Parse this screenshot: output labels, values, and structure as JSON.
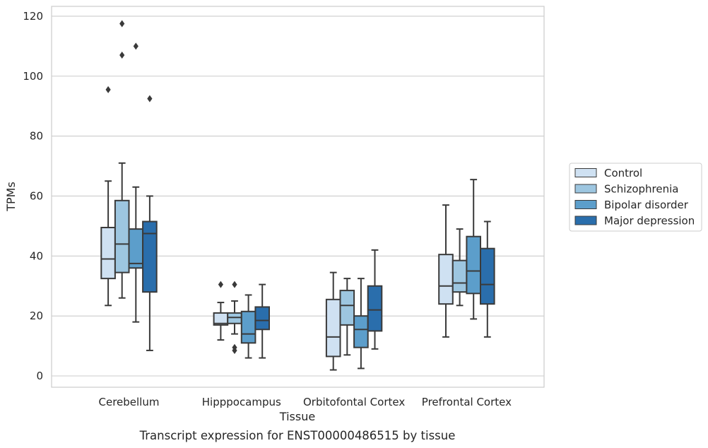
{
  "caption": "Transcript expression for ENST00000486515 by tissue",
  "chart_data": {
    "type": "box",
    "xlabel": "Tissue",
    "ylabel": "TPMs",
    "ylim": [
      -3.5,
      123.5
    ],
    "yticks": [
      0,
      20,
      40,
      60,
      80,
      100,
      120
    ],
    "grid": true,
    "legend_position": "right",
    "categories": [
      "Cerebellum",
      "Hipppocampus",
      "Orbitofontal Cortex",
      "Prefrontal Cortex"
    ],
    "series": [
      {
        "name": "Control",
        "color": "#cfe1f2",
        "boxes": [
          {
            "low": 23.5,
            "q1": 32.5,
            "median": 39,
            "q3": 49.5,
            "high": 65,
            "outliers": [
              95.5
            ]
          },
          {
            "low": 12,
            "q1": 17,
            "median": 17.5,
            "q3": 21,
            "high": 24.5,
            "outliers": [
              30.5
            ]
          },
          {
            "low": 2,
            "q1": 6.5,
            "median": 13,
            "q3": 25.5,
            "high": 34.5,
            "outliers": []
          },
          {
            "low": 13,
            "q1": 24,
            "median": 30,
            "q3": 40.5,
            "high": 57,
            "outliers": []
          }
        ]
      },
      {
        "name": "Schizophrenia",
        "color": "#9dc6e0",
        "boxes": [
          {
            "low": 26,
            "q1": 34.5,
            "median": 44,
            "q3": 58.5,
            "high": 71,
            "outliers": [
              107,
              117.5
            ]
          },
          {
            "low": 14,
            "q1": 17.5,
            "median": 19.5,
            "q3": 21,
            "high": 25,
            "outliers": [
              30.5,
              8.5,
              9.5
            ]
          },
          {
            "low": 7,
            "q1": 17,
            "median": 23.5,
            "q3": 28.5,
            "high": 32.5,
            "outliers": []
          },
          {
            "low": 23.5,
            "q1": 28,
            "median": 31,
            "q3": 38.5,
            "high": 49,
            "outliers": []
          }
        ]
      },
      {
        "name": "Bipolar disorder",
        "color": "#5c9ecb",
        "boxes": [
          {
            "low": 18,
            "q1": 36,
            "median": 37.5,
            "q3": 49,
            "high": 63,
            "outliers": [
              110
            ]
          },
          {
            "low": 6,
            "q1": 11,
            "median": 14,
            "q3": 21.5,
            "high": 27,
            "outliers": []
          },
          {
            "low": 2.5,
            "q1": 9.5,
            "median": 15.5,
            "q3": 20,
            "high": 32.5,
            "outliers": []
          },
          {
            "low": 19,
            "q1": 27.5,
            "median": 35,
            "q3": 46.5,
            "high": 65.5,
            "outliers": []
          }
        ]
      },
      {
        "name": "Major depression",
        "color": "#2a6eac",
        "boxes": [
          {
            "low": 8.5,
            "q1": 28,
            "median": 47.5,
            "q3": 51.5,
            "high": 60,
            "outliers": [
              92.5
            ]
          },
          {
            "low": 6,
            "q1": 15.5,
            "median": 18.5,
            "q3": 23,
            "high": 30.5,
            "outliers": []
          },
          {
            "low": 9,
            "q1": 15,
            "median": 22,
            "q3": 30,
            "high": 42,
            "outliers": []
          },
          {
            "low": 13,
            "q1": 24,
            "median": 30.5,
            "q3": 42.5,
            "high": 51.5,
            "outliers": []
          }
        ]
      }
    ]
  }
}
